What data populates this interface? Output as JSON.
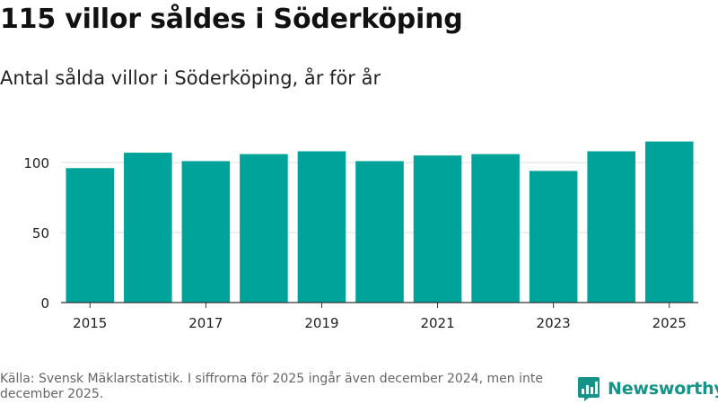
{
  "title": "115 villor såldes i Söderköping",
  "subtitle": "Antal sålda villor i Söderköping, år för år",
  "footer": "Källa: Svensk Mäklarstatistik. I siffrorna för 2025 ingår även december 2024, men inte december 2025.",
  "brand": "Newsworthy",
  "colors": {
    "bar": "#00a39a",
    "brand": "#169389",
    "grid": "#dddddd",
    "axis": "#333333"
  },
  "chart_data": {
    "type": "bar",
    "title": "115 villor såldes i Söderköping",
    "subtitle": "Antal sålda villor i Söderköping, år för år",
    "categories": [
      "2015",
      "2016",
      "2017",
      "2018",
      "2019",
      "2020",
      "2021",
      "2022",
      "2023",
      "2024",
      "2025"
    ],
    "values": [
      96,
      107,
      101,
      106,
      108,
      101,
      105,
      106,
      94,
      108,
      115
    ],
    "x_tick_labels": [
      "2015",
      "2017",
      "2019",
      "2021",
      "2023",
      "2025"
    ],
    "y_ticks": [
      0,
      50,
      100
    ],
    "ylim": [
      0,
      125
    ],
    "grid": true,
    "xlabel": "",
    "ylabel": ""
  }
}
